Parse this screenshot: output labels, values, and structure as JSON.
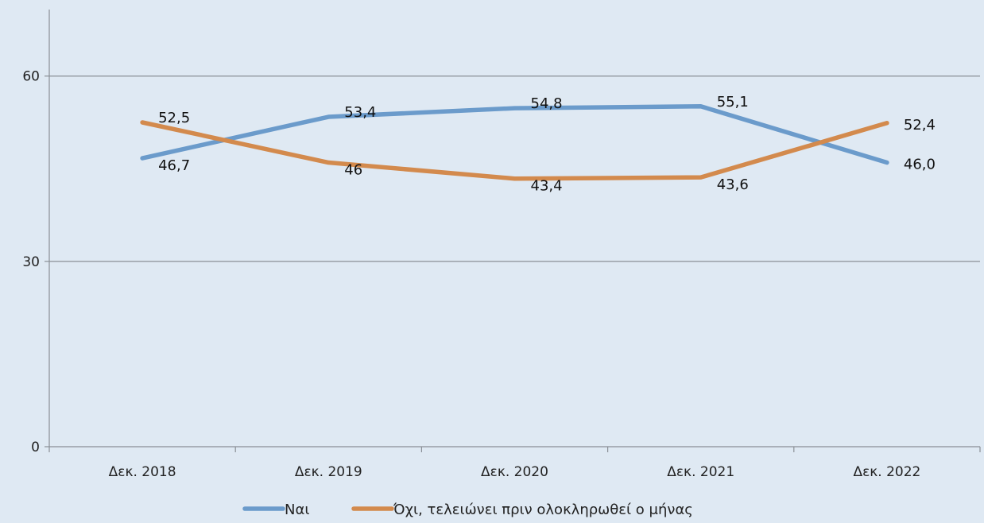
{
  "chart_data": {
    "type": "line",
    "categories": [
      "Δεκ. 2018",
      "Δεκ. 2019",
      "Δεκ. 2020",
      "Δεκ. 2021",
      "Δεκ. 2022"
    ],
    "ylim": [
      0,
      70
    ],
    "yticks": [
      0,
      30,
      60
    ],
    "grid": true,
    "legend": "bottom",
    "series": [
      {
        "name": "Ναι",
        "color": "#6b9bcb",
        "values": [
          46.7,
          53.4,
          54.8,
          55.1,
          46.0
        ],
        "labels": [
          "46,7",
          "53,4",
          "54,8",
          "55,1",
          "46,0"
        ]
      },
      {
        "name": "Όχι, τελειώνει πριν ολοκληρωθεί ο μήνας",
        "color": "#d38a4d",
        "values": [
          52.5,
          46,
          43.4,
          43.6,
          52.4
        ],
        "labels": [
          "52,5",
          "46",
          "43,4",
          "43,6",
          "52,4"
        ]
      }
    ]
  }
}
